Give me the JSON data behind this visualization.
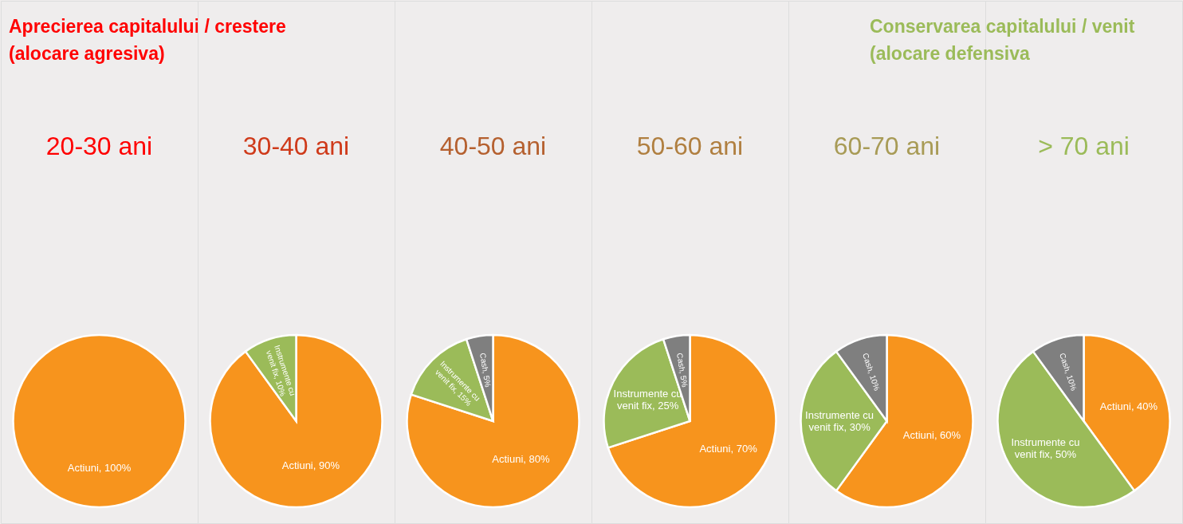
{
  "chart_data": [
    {
      "type": "pie",
      "title": "20-30 ani",
      "categories": [
        "Actiuni"
      ],
      "values": [
        100
      ],
      "colors": [
        "#f7941d"
      ],
      "value_labels": [
        "100%"
      ],
      "annotations": [
        "Aprecierea capitalului / crestere (alocare agresiva)"
      ]
    },
    {
      "type": "pie",
      "title": "30-40 ani",
      "categories": [
        "Actiuni",
        "Instrumente cu venit fix"
      ],
      "values": [
        90,
        10
      ],
      "colors": [
        "#f7941d",
        "#9bbb59"
      ],
      "value_labels": [
        "90%",
        "10%"
      ]
    },
    {
      "type": "pie",
      "title": "40-50 ani",
      "categories": [
        "Actiuni",
        "Instrumente cu venit fix",
        "Cash"
      ],
      "values": [
        80,
        15,
        5
      ],
      "colors": [
        "#f7941d",
        "#9bbb59",
        "#7f7f7f"
      ],
      "value_labels": [
        "80%",
        "15%",
        "5%"
      ]
    },
    {
      "type": "pie",
      "title": "50-60 ani",
      "categories": [
        "Actiuni",
        "Instrumente cu venit fix",
        "Cash"
      ],
      "values": [
        70,
        25,
        5
      ],
      "colors": [
        "#f7941d",
        "#9bbb59",
        "#7f7f7f"
      ],
      "value_labels": [
        "70%",
        "25%",
        "5%"
      ]
    },
    {
      "type": "pie",
      "title": "60-70 ani",
      "categories": [
        "Actiuni",
        "Instrumente cu venit fix",
        "Cash"
      ],
      "values": [
        60,
        30,
        10
      ],
      "colors": [
        "#f7941d",
        "#9bbb59",
        "#7f7f7f"
      ],
      "value_labels": [
        "60%",
        "30%",
        "10%"
      ]
    },
    {
      "type": "pie",
      "title": "> 70 ani",
      "categories": [
        "Actiuni",
        "Instrumente cu venit fix",
        "Cash"
      ],
      "values": [
        40,
        50,
        10
      ],
      "colors": [
        "#f7941d",
        "#9bbb59",
        "#7f7f7f"
      ],
      "value_labels": [
        "40%",
        "50%",
        "10%"
      ],
      "annotations": [
        "Conservarea capitalului / venit (alocare defensiva"
      ]
    }
  ]
}
